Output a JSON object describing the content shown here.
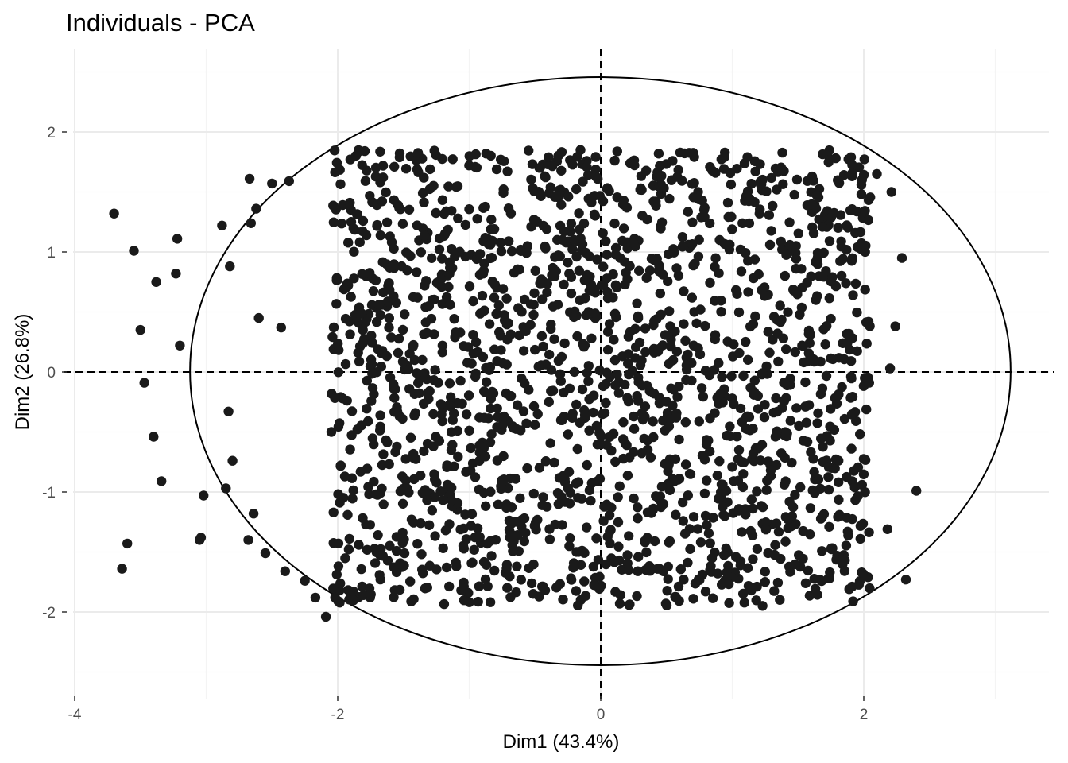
{
  "chart_data": {
    "type": "scatter",
    "title": "Individuals - PCA",
    "xlabel": "Dim1 (43.4%)",
    "ylabel": "Dim2 (26.8%)",
    "xlim": [
      -4.0,
      3.6
    ],
    "ylim": [
      -2.5,
      2.5
    ],
    "xticks": [
      -4,
      -2,
      0,
      2
    ],
    "xtick_labels": [
      "-4",
      "-2",
      "0",
      "2"
    ],
    "yticks": [
      -2,
      -1,
      0,
      1,
      2
    ],
    "ytick_labels": [
      "-2",
      "-1",
      "0",
      "1",
      "2"
    ],
    "grid": true,
    "reference_lines": {
      "x": 0,
      "y": 0,
      "style": "dashed"
    },
    "ellipse": {
      "center": [
        0,
        0
      ],
      "rx": 3.12,
      "ry": 2.45
    },
    "point_color": "#1a1a1a",
    "outlier_points": [
      [
        -3.7,
        1.32
      ],
      [
        -3.55,
        1.01
      ],
      [
        -3.38,
        0.75
      ],
      [
        -3.5,
        0.35
      ],
      [
        -3.2,
        0.22
      ],
      [
        -3.22,
        1.11
      ],
      [
        -3.23,
        0.82
      ],
      [
        -3.47,
        -0.09
      ],
      [
        -3.4,
        -0.54
      ],
      [
        -3.34,
        -0.91
      ],
      [
        -3.02,
        -1.03
      ],
      [
        -3.04,
        -1.38
      ],
      [
        -3.05,
        -1.4
      ],
      [
        -3.6,
        -1.43
      ],
      [
        -3.64,
        -1.64
      ],
      [
        -2.88,
        1.22
      ],
      [
        -2.82,
        0.88
      ],
      [
        -2.67,
        1.61
      ],
      [
        -2.62,
        1.36
      ],
      [
        -2.66,
        1.24
      ],
      [
        -2.5,
        1.57
      ],
      [
        -2.37,
        1.59
      ],
      [
        -2.43,
        0.37
      ],
      [
        -2.6,
        0.45
      ],
      [
        -2.83,
        -0.33
      ],
      [
        -2.8,
        -0.74
      ],
      [
        -2.64,
        -1.18
      ],
      [
        -2.55,
        -1.51
      ],
      [
        -2.4,
        -1.66
      ],
      [
        -2.25,
        -1.74
      ],
      [
        -2.17,
        -1.88
      ],
      [
        -2.09,
        -2.04
      ],
      [
        -2.02,
        -1.88
      ],
      [
        -2.85,
        -0.97
      ],
      [
        -2.68,
        -1.4
      ]
    ],
    "point_cloud": {
      "n": 1850,
      "x_range": [
        -2.05,
        2.05
      ],
      "y_range": [
        -1.95,
        1.85
      ],
      "seed": 20240517
    },
    "extreme_right_points": [
      [
        2.4,
        -0.99
      ],
      [
        2.29,
        0.95
      ],
      [
        2.21,
        1.5
      ],
      [
        2.2,
        0.03
      ],
      [
        2.18,
        -1.31
      ],
      [
        2.24,
        0.38
      ],
      [
        2.32,
        -1.73
      ],
      [
        2.1,
        1.65
      ]
    ]
  }
}
